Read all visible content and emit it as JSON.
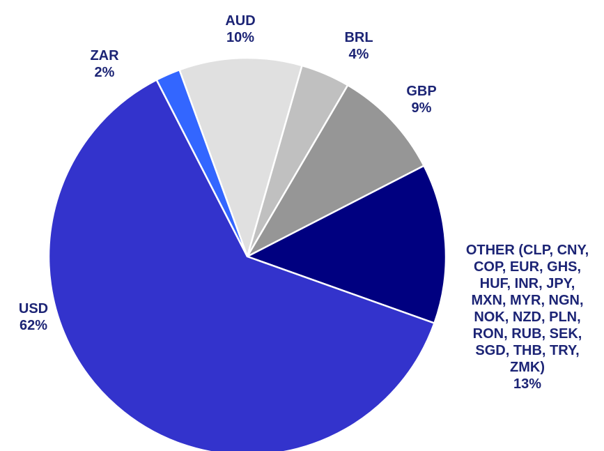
{
  "chart_data": {
    "type": "pie",
    "categories": [
      "AUD",
      "BRL",
      "GBP",
      "OTHER (CLP, CNY, COP, EUR, GHS, HUF, INR, JPY, MXN, MYR, NGN, NOK, NZD, PLN, RON, RUB, SEK, SGD, THB, TRY, ZMK)",
      "USD",
      "ZAR"
    ],
    "values": [
      10,
      4,
      9,
      13,
      62,
      2
    ],
    "value_labels": [
      "10%",
      "4%",
      "9%",
      "13%",
      "62%",
      "2%"
    ],
    "colors": [
      "#e0e0e0",
      "#c0c0c0",
      "#969696",
      "#000080",
      "#3333cc",
      "#3366ff"
    ]
  }
}
